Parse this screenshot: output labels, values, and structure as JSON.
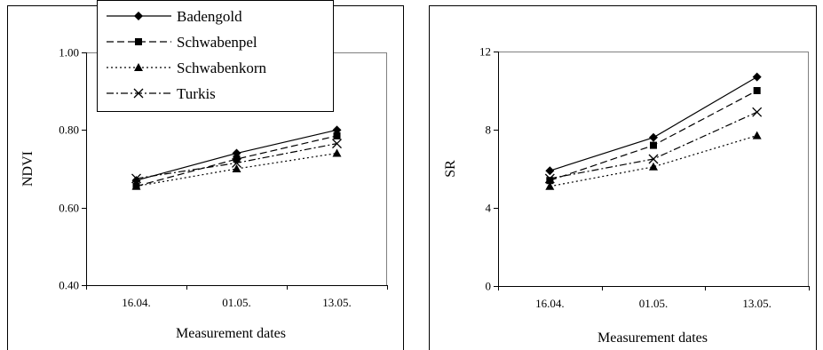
{
  "chart_data": [
    {
      "type": "line",
      "categories": [
        "16.04.",
        "01.05.",
        "13.05."
      ],
      "xlabel": "Measurement dates",
      "ylabel": "NDVI",
      "ylim": [
        0.4,
        1.0
      ],
      "yticks": [
        "0.40",
        "0.60",
        "0.80",
        "1.00"
      ],
      "grid": false,
      "legend": "top-left",
      "series": [
        {
          "name": "Badengold",
          "values": [
            0.67,
            0.74,
            0.8
          ]
        },
        {
          "name": "Schwabenpel",
          "values": [
            0.655,
            0.725,
            0.785
          ]
        },
        {
          "name": "Schwabenkorn",
          "values": [
            0.655,
            0.7,
            0.74
          ]
        },
        {
          "name": "Turkis",
          "values": [
            0.675,
            0.715,
            0.765
          ]
        }
      ]
    },
    {
      "type": "line",
      "categories": [
        "16.04.",
        "01.05.",
        "13.05."
      ],
      "xlabel": "Measurement dates",
      "ylabel": "SR",
      "ylim": [
        0,
        12
      ],
      "yticks": [
        "0",
        "4",
        "8",
        "12"
      ],
      "grid": false,
      "series": [
        {
          "values": [
            5.9,
            7.6,
            10.7
          ]
        },
        {
          "values": [
            5.4,
            7.2,
            10.0
          ]
        },
        {
          "values": [
            5.1,
            6.1,
            7.7
          ]
        },
        {
          "values": [
            5.5,
            6.5,
            8.9
          ]
        }
      ]
    }
  ],
  "series_styles": [
    {
      "dash": "",
      "marker": "diamond"
    },
    {
      "dash": "8,4",
      "marker": "square"
    },
    {
      "dash": "2,3",
      "marker": "triangle"
    },
    {
      "dash": "8,3,2,3",
      "marker": "x"
    }
  ]
}
